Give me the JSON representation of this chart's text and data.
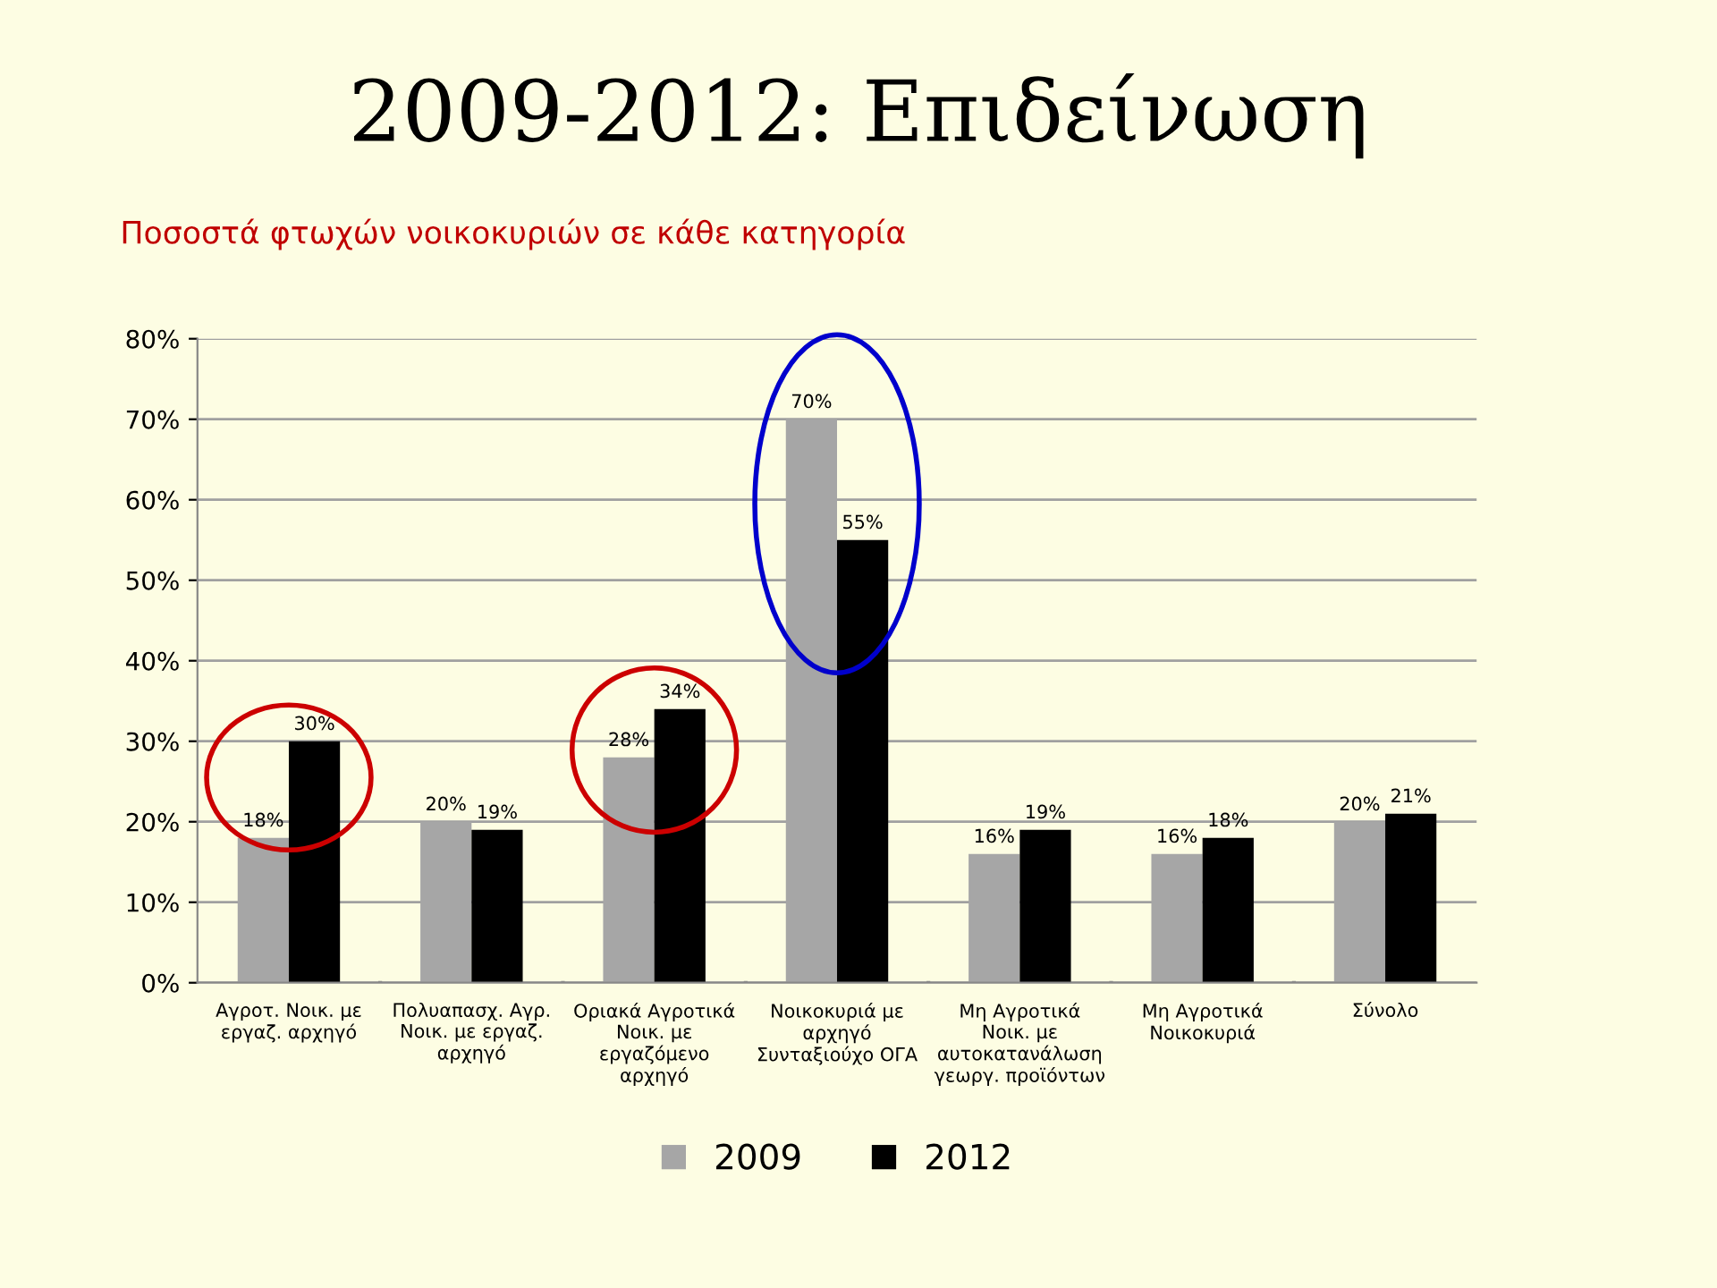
{
  "chart_data": {
    "type": "bar",
    "title": "2009-2012: Επιδείνωση",
    "subtitle": "Ποσοστά φτωχών νοικοκυριών σε κάθε κατηγορία",
    "categories": [
      "Αγροτ. Νοικ. με\nεργαζ. αρχηγό",
      "Πολυαπασχ. Αγρ.\nΝοικ. με εργαζ.\nαρχηγό",
      "Οριακά Αγροτικά\nΝοικ. με\nεργαζόμενο\nαρχηγό",
      "Νοικοκυριά με\nαρχηγό\nΣυνταξιούχο ΟΓΑ",
      "Μη Αγροτικά\nΝοικ. με\nαυτοκατανάλωση\nγεωργ. προϊόντων",
      "Μη Αγροτικά\nΝοικοκυριά",
      "Σύνολο"
    ],
    "series": [
      {
        "name": "2009",
        "color": "#a6a6a6",
        "values": [
          18,
          20,
          28,
          70,
          16,
          16,
          20
        ],
        "value_labels": [
          "18%",
          "20%",
          "28%",
          "70%",
          "16%",
          "16%",
          "20%"
        ]
      },
      {
        "name": "2012",
        "color": "#000000",
        "values": [
          30,
          19,
          34,
          55,
          19,
          18,
          21
        ],
        "value_labels": [
          "30%",
          "19%",
          "34%",
          "55%",
          "19%",
          "18%",
          "21%"
        ]
      }
    ],
    "ylim": [
      0,
      80
    ],
    "yticks": [
      {
        "value": 0,
        "label": "0%"
      },
      {
        "value": 10,
        "label": "10%"
      },
      {
        "value": 20,
        "label": "20%"
      },
      {
        "value": 30,
        "label": "30%"
      },
      {
        "value": 40,
        "label": "40%"
      },
      {
        "value": 50,
        "label": "50%"
      },
      {
        "value": 60,
        "label": "60%"
      },
      {
        "value": 70,
        "label": "70%"
      },
      {
        "value": 80,
        "label": "80%"
      }
    ],
    "grid": "y",
    "legend": "bottom"
  }
}
